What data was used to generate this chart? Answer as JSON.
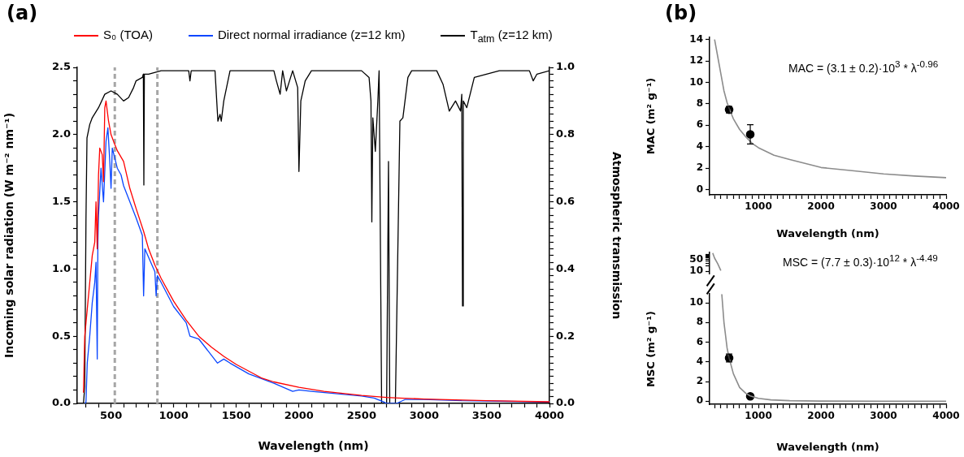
{
  "chart_data": [
    {
      "type": "line",
      "title": "(a)",
      "xlabel": "Wavelength (nm)",
      "ylabel": "Incoming solar radiation (W m⁻² nm⁻¹)",
      "y2label": "Atmospheric transmission",
      "legend": "top",
      "grid": false,
      "xlim": [
        230,
        4000
      ],
      "ylim": [
        0,
        2.5
      ],
      "y2lim": [
        0,
        1
      ],
      "xticks": [
        {
          "value": 300,
          "label": null
        },
        {
          "value": 400,
          "label": null
        },
        500,
        {
          "value": 600,
          "label": null
        },
        {
          "value": 700,
          "label": null
        },
        {
          "value": 800,
          "label": null
        },
        {
          "value": 900,
          "label": null
        },
        1000,
        {
          "value": 1100,
          "label": null
        },
        {
          "value": 1200,
          "label": null
        },
        {
          "value": 1300,
          "label": null
        },
        {
          "value": 1400,
          "label": null
        },
        1500,
        {
          "value": 1600,
          "label": null
        },
        {
          "value": 1700,
          "label": null
        },
        {
          "value": 1800,
          "label": null
        },
        {
          "value": 1900,
          "label": null
        },
        2000,
        {
          "value": 2100,
          "label": null
        },
        {
          "value": 2200,
          "label": null
        },
        {
          "value": 2300,
          "label": null
        },
        {
          "value": 2400,
          "label": null
        },
        2500,
        {
          "value": 2600,
          "label": null
        },
        {
          "value": 2700,
          "label": null
        },
        {
          "value": 2800,
          "label": null
        },
        {
          "value": 2900,
          "label": null
        },
        3000,
        {
          "value": 3100,
          "label": null
        },
        {
          "value": 3200,
          "label": null
        },
        {
          "value": 3300,
          "label": null
        },
        {
          "value": 3400,
          "label": null
        },
        3500,
        {
          "value": 3600,
          "label": null
        },
        {
          "value": 3700,
          "label": null
        },
        {
          "value": 3800,
          "label": null
        },
        {
          "value": 3900,
          "label": null
        },
        4000
      ],
      "yticks": [
        {
          "value": 0,
          "label": "0.0"
        },
        {
          "value": 0.1,
          "label": null
        },
        {
          "value": 0.2,
          "label": null
        },
        {
          "value": 0.3,
          "label": null
        },
        {
          "value": 0.4,
          "label": null
        },
        0.5,
        {
          "value": 0.6,
          "label": null
        },
        {
          "value": 0.7,
          "label": null
        },
        {
          "value": 0.8,
          "label": null
        },
        {
          "value": 0.9,
          "label": null
        },
        {
          "value": 1,
          "label": "1.0"
        },
        {
          "value": 1.1,
          "label": null
        },
        {
          "value": 1.2,
          "label": null
        },
        {
          "value": 1.3,
          "label": null
        },
        {
          "value": 1.4,
          "label": null
        },
        1.5,
        {
          "value": 1.6,
          "label": null
        },
        {
          "value": 1.7,
          "label": null
        },
        {
          "value": 1.8,
          "label": null
        },
        {
          "value": 1.9,
          "label": null
        },
        {
          "value": 2,
          "label": "2.0"
        },
        {
          "value": 2.1,
          "label": null
        },
        {
          "value": 2.2,
          "label": null
        },
        {
          "value": 2.3,
          "label": null
        },
        {
          "value": 2.4,
          "label": null
        },
        2.5
      ],
      "y2ticks": [
        {
          "value": 0,
          "label": "0.0"
        },
        {
          "value": 0.02,
          "label": null
        },
        {
          "value": 0.04,
          "label": null
        },
        {
          "value": 0.06,
          "label": null
        },
        {
          "value": 0.08,
          "label": null
        },
        {
          "value": 0.1,
          "label": null
        },
        {
          "value": 0.12,
          "label": null
        },
        {
          "value": 0.14,
          "label": null
        },
        {
          "value": 0.16,
          "label": null
        },
        {
          "value": 0.18,
          "label": null
        },
        0.2,
        {
          "value": 0.22,
          "label": null
        },
        {
          "value": 0.24,
          "label": null
        },
        {
          "value": 0.26,
          "label": null
        },
        {
          "value": 0.28,
          "label": null
        },
        {
          "value": 0.3,
          "label": null
        },
        {
          "value": 0.32,
          "label": null
        },
        {
          "value": 0.34,
          "label": null
        },
        {
          "value": 0.36,
          "label": null
        },
        {
          "value": 0.38,
          "label": null
        },
        0.4,
        {
          "value": 0.42,
          "label": null
        },
        {
          "value": 0.44,
          "label": null
        },
        {
          "value": 0.46,
          "label": null
        },
        {
          "value": 0.48,
          "label": null
        },
        {
          "value": 0.5,
          "label": null
        },
        {
          "value": 0.52,
          "label": null
        },
        {
          "value": 0.54,
          "label": null
        },
        {
          "value": 0.56,
          "label": null
        },
        {
          "value": 0.58,
          "label": null
        },
        0.6,
        {
          "value": 0.62,
          "label": null
        },
        {
          "value": 0.64,
          "label": null
        },
        {
          "value": 0.66,
          "label": null
        },
        {
          "value": 0.68,
          "label": null
        },
        {
          "value": 0.7,
          "label": null
        },
        {
          "value": 0.72,
          "label": null
        },
        {
          "value": 0.74,
          "label": null
        },
        {
          "value": 0.76,
          "label": null
        },
        {
          "value": 0.78,
          "label": null
        },
        0.8,
        {
          "value": 0.82,
          "label": null
        },
        {
          "value": 0.84,
          "label": null
        },
        {
          "value": 0.86,
          "label": null
        },
        {
          "value": 0.88,
          "label": null
        },
        {
          "value": 0.9,
          "label": null
        },
        {
          "value": 0.92,
          "label": null
        },
        {
          "value": 0.94,
          "label": null
        },
        {
          "value": 0.96,
          "label": null
        },
        {
          "value": 0.98,
          "label": null
        },
        {
          "value": 1,
          "label": "1.0"
        }
      ],
      "ref_lines": [
        {
          "axis": "x",
          "value": 530,
          "color": "#a6a6a6",
          "line_style": "dashed"
        },
        {
          "axis": "x",
          "value": 870,
          "color": "#a6a6a6",
          "line_style": "dashed"
        }
      ],
      "series": [
        {
          "name": "S₀ (TOA)",
          "color": "#ff0000",
          "x": [
            280,
            290,
            300,
            310,
            330,
            350,
            370,
            380,
            390,
            400,
            410,
            430,
            440,
            450,
            460,
            480,
            500,
            520,
            550,
            600,
            650,
            700,
            760,
            800,
            850,
            900,
            1000,
            1100,
            1200,
            1300,
            1400,
            1500,
            1600,
            1700,
            1800,
            2000,
            2200,
            2500,
            2700,
            2800,
            3000,
            3500,
            4000
          ],
          "values": [
            0.08,
            0.5,
            0.6,
            0.7,
            0.9,
            1.1,
            1.2,
            1.5,
            1.15,
            1.7,
            1.9,
            1.85,
            1.65,
            2.2,
            2.25,
            2.1,
            2.0,
            1.95,
            1.88,
            1.8,
            1.6,
            1.45,
            1.28,
            1.15,
            1.03,
            0.93,
            0.76,
            0.62,
            0.5,
            0.42,
            0.35,
            0.29,
            0.24,
            0.19,
            0.16,
            0.12,
            0.09,
            0.06,
            0.045,
            0.04,
            0.033,
            0.02,
            0.012
          ]
        },
        {
          "name": "Direct normal irradiance (z=12 km)",
          "color": "#0a46ff",
          "x": [
            290,
            300,
            310,
            330,
            350,
            370,
            380,
            390,
            395,
            400,
            420,
            440,
            460,
            475,
            490,
            500,
            510,
            550,
            580,
            600,
            650,
            700,
            750,
            760,
            770,
            850,
            860,
            870,
            900,
            1000,
            1100,
            1130,
            1200,
            1350,
            1400,
            1450,
            1600,
            1800,
            1950,
            2000,
            2100,
            2500,
            2600,
            2680,
            2700,
            2780,
            2850,
            3000,
            3300,
            3500,
            4000
          ],
          "values": [
            0,
            0.01,
            0.3,
            0.5,
            0.75,
            0.9,
            1.05,
            0.33,
            1.2,
            1.4,
            1.75,
            1.5,
            1.95,
            2.05,
            1.8,
            1.6,
            1.9,
            1.75,
            1.7,
            1.62,
            1.5,
            1.38,
            1.25,
            0.8,
            1.15,
            0.98,
            0.8,
            0.95,
            0.9,
            0.72,
            0.6,
            0.5,
            0.48,
            0.3,
            0.33,
            0.3,
            0.22,
            0.15,
            0.09,
            0.1,
            0.09,
            0.055,
            0.04,
            0.01,
            0,
            0,
            0.03,
            0.03,
            0.02,
            0.018,
            0.01
          ]
        },
        {
          "name": "T$_{atm}$ (z=12 km)",
          "color": "#000000",
          "axis": "y2",
          "x": [
            280,
            290,
            300,
            308,
            330,
            350,
            400,
            450,
            500,
            550,
            600,
            640,
            680,
            700,
            750,
            758,
            762,
            766,
            800,
            900,
            1120,
            1130,
            1140,
            1330,
            1353,
            1370,
            1380,
            1400,
            1450,
            1800,
            1820,
            1850,
            1870,
            1900,
            1950,
            1990,
            2000,
            2015,
            2050,
            2100,
            2500,
            2560,
            2575,
            2582,
            2590,
            2610,
            2630,
            2640,
            2660,
            2700,
            2715,
            2725,
            2770,
            2806,
            2830,
            2870,
            2900,
            3100,
            3150,
            3200,
            3250,
            3290,
            3300,
            3306,
            3312,
            3340,
            3400,
            3600,
            3840,
            3870,
            3900,
            4000
          ],
          "values": [
            0,
            0.05,
            0.55,
            0.79,
            0.83,
            0.85,
            0.88,
            0.92,
            0.93,
            0.92,
            0.9,
            0.91,
            0.94,
            0.96,
            0.97,
            0.98,
            0.65,
            0.98,
            0.98,
            0.99,
            0.99,
            0.96,
            0.99,
            0.99,
            0.84,
            0.86,
            0.84,
            0.9,
            0.99,
            0.99,
            0.96,
            0.92,
            0.99,
            0.93,
            0.99,
            0.94,
            0.69,
            0.9,
            0.96,
            0.99,
            0.99,
            0.97,
            0.9,
            0.54,
            0.85,
            0.75,
            0.9,
            0.99,
            0,
            0,
            0.72,
            0,
            0,
            0.84,
            0.85,
            0.97,
            0.99,
            0.99,
            0.95,
            0.87,
            0.9,
            0.87,
            0.92,
            0.29,
            0.9,
            0.88,
            0.97,
            0.99,
            0.99,
            0.96,
            0.98,
            0.99
          ]
        }
      ]
    },
    {
      "type": "scatter",
      "title": "(b)",
      "xlabel": "Wavelength (nm)",
      "ylabel": "MAC (m² g⁻¹)",
      "grid": false,
      "xlim": [
        220,
        4000
      ],
      "ylim": [
        -0.5,
        14.2
      ],
      "xticks": [
        {
          "value": 300,
          "label": null
        },
        {
          "value": 400,
          "label": null
        },
        {
          "value": 500,
          "label": null
        },
        {
          "value": 600,
          "label": null
        },
        {
          "value": 700,
          "label": null
        },
        {
          "value": 800,
          "label": null
        },
        {
          "value": 900,
          "label": null
        },
        1000,
        {
          "value": 1100,
          "label": null
        },
        {
          "value": 1200,
          "label": null
        },
        {
          "value": 1300,
          "label": null
        },
        {
          "value": 1400,
          "label": null
        },
        {
          "value": 1500,
          "label": null
        },
        {
          "value": 1600,
          "label": null
        },
        {
          "value": 1700,
          "label": null
        },
        {
          "value": 1800,
          "label": null
        },
        {
          "value": 1900,
          "label": null
        },
        2000,
        {
          "value": 2100,
          "label": null
        },
        {
          "value": 2200,
          "label": null
        },
        {
          "value": 2300,
          "label": null
        },
        {
          "value": 2400,
          "label": null
        },
        {
          "value": 2500,
          "label": null
        },
        {
          "value": 2600,
          "label": null
        },
        {
          "value": 2700,
          "label": null
        },
        {
          "value": 2800,
          "label": null
        },
        {
          "value": 2900,
          "label": null
        },
        3000,
        {
          "value": 3100,
          "label": null
        },
        {
          "value": 3200,
          "label": null
        },
        {
          "value": 3300,
          "label": null
        },
        {
          "value": 3400,
          "label": null
        },
        {
          "value": 3500,
          "label": null
        },
        {
          "value": 3600,
          "label": null
        },
        {
          "value": 3700,
          "label": null
        },
        {
          "value": 3800,
          "label": null
        },
        {
          "value": 3900,
          "label": null
        },
        4000
      ],
      "yticks": [
        0,
        2,
        4,
        6,
        8,
        10,
        12,
        14
      ],
      "annotations": [
        "MAC = (3.1 ± 0.2)·10$^{3}$ * λ$^{-0.96}$"
      ],
      "series": [
        {
          "type": "line",
          "color": "#8c8c8c",
          "x": [
            300,
            350,
            400,
            450,
            500,
            550,
            600,
            700,
            800,
            900,
            1000,
            1250,
            1500,
            2000,
            2500,
            3000,
            3500,
            4000
          ],
          "values": [
            14,
            12.4,
            10.8,
            9.2,
            8.1,
            7.3,
            6.6,
            5.6,
            4.9,
            4.3,
            3.9,
            3.2,
            2.8,
            2.05,
            1.75,
            1.45,
            1.25,
            1.1
          ]
        },
        {
          "color": "#000000",
          "marker": "circle",
          "x": [
            532,
            870
          ],
          "values": [
            7.45,
            5.15
          ],
          "errors": [
            0.3,
            0.9
          ]
        }
      ]
    },
    {
      "type": "line",
      "log": "y",
      "tick_labels": "y",
      "grid": false,
      "xlim": [
        220,
        4000
      ],
      "ylim": [
        6.7,
        130
      ],
      "yticks": [
        10,
        {
          "value": 20,
          "label": null
        },
        {
          "value": 30,
          "label": null
        },
        {
          "value": 40,
          "label": null
        },
        50,
        {
          "value": 60,
          "label": null
        },
        {
          "value": 70,
          "label": null
        },
        {
          "value": 80,
          "label": null
        },
        {
          "value": 90,
          "label": null
        },
        {
          "value": 100,
          "label": null
        }
      ],
      "annotations": [
        "MSC = (7.7 ± 0.3)·10$^{12}$ * λ$^{-4.49}$"
      ],
      "series": [
        {
          "color": "#8c8c8c",
          "x": [
            270,
            300,
            350,
            400
          ],
          "values": [
            120,
            60,
            28,
            11
          ]
        }
      ]
    },
    {
      "type": "scatter",
      "xlabel": "Wavelength (nm)",
      "ylabel": "MSC (m² g⁻¹)",
      "grid": false,
      "xlim": [
        220,
        4000
      ],
      "ylim": [
        -0.3,
        10.9
      ],
      "xticks": [
        {
          "value": 300,
          "label": null
        },
        {
          "value": 400,
          "label": null
        },
        {
          "value": 500,
          "label": null
        },
        {
          "value": 600,
          "label": null
        },
        {
          "value": 700,
          "label": null
        },
        {
          "value": 800,
          "label": null
        },
        {
          "value": 900,
          "label": null
        },
        1000,
        {
          "value": 1100,
          "label": null
        },
        {
          "value": 1200,
          "label": null
        },
        {
          "value": 1300,
          "label": null
        },
        {
          "value": 1400,
          "label": null
        },
        {
          "value": 1500,
          "label": null
        },
        {
          "value": 1600,
          "label": null
        },
        {
          "value": 1700,
          "label": null
        },
        {
          "value": 1800,
          "label": null
        },
        {
          "value": 1900,
          "label": null
        },
        2000,
        {
          "value": 2100,
          "label": null
        },
        {
          "value": 2200,
          "label": null
        },
        {
          "value": 2300,
          "label": null
        },
        {
          "value": 2400,
          "label": null
        },
        {
          "value": 2500,
          "label": null
        },
        {
          "value": 2600,
          "label": null
        },
        {
          "value": 2700,
          "label": null
        },
        {
          "value": 2800,
          "label": null
        },
        {
          "value": 2900,
          "label": null
        },
        3000,
        {
          "value": 3100,
          "label": null
        },
        {
          "value": 3200,
          "label": null
        },
        {
          "value": 3300,
          "label": null
        },
        {
          "value": 3400,
          "label": null
        },
        {
          "value": 3500,
          "label": null
        },
        {
          "value": 3600,
          "label": null
        },
        {
          "value": 3700,
          "label": null
        },
        {
          "value": 3800,
          "label": null
        },
        {
          "value": 3900,
          "label": null
        },
        4000
      ],
      "yticks": [
        0,
        2,
        4,
        6,
        8,
        10
      ],
      "series": [
        {
          "type": "line",
          "color": "#8c8c8c",
          "x": [
            415,
            450,
            500,
            532,
            600,
            700,
            800,
            870,
            1000,
            1200,
            1500,
            2000,
            3000,
            4000
          ],
          "values": [
            10.9,
            8.0,
            5.4,
            4.4,
            2.8,
            1.4,
            0.8,
            0.55,
            0.3,
            0.14,
            0.06,
            0.02,
            0,
            0
          ]
        },
        {
          "color": "#000000",
          "marker": "circle",
          "x": [
            532,
            870
          ],
          "values": [
            4.4,
            0.5
          ],
          "errors": [
            0.4,
            null
          ]
        }
      ]
    }
  ]
}
